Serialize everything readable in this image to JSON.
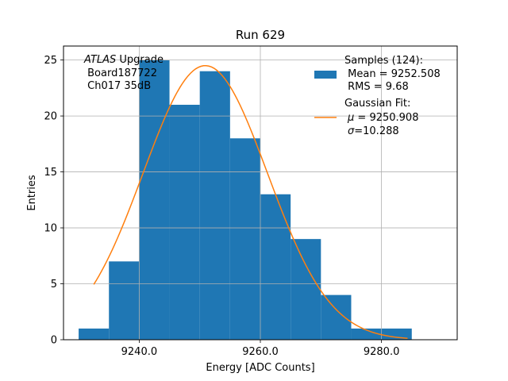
{
  "chart_data": {
    "type": "bar",
    "title": "Run 629",
    "xlabel": "Energy [ADC Counts]",
    "ylabel": "Entries",
    "xlim": [
      9227.5,
      9292.5
    ],
    "ylim": [
      0,
      26.25
    ],
    "grid": true,
    "legend_placement": "top-right",
    "x_ticks": [
      {
        "value": 9240,
        "label": "9240.0"
      },
      {
        "value": 9260,
        "label": "9260.0"
      },
      {
        "value": 9280,
        "label": "9280.0"
      }
    ],
    "y_ticks": [
      {
        "value": 0,
        "label": "0"
      },
      {
        "value": 5,
        "label": "5"
      },
      {
        "value": 10,
        "label": "10"
      },
      {
        "value": 15,
        "label": "15"
      },
      {
        "value": 20,
        "label": "20"
      },
      {
        "value": 25,
        "label": "25"
      }
    ],
    "histogram": {
      "bin_edges": [
        9230,
        9235,
        9240,
        9245,
        9250,
        9255,
        9260,
        9265,
        9270,
        9275,
        9280,
        9285
      ],
      "counts": [
        1,
        7,
        25,
        21,
        24,
        18,
        13,
        9,
        4,
        1,
        1
      ],
      "color": "#1f77b4"
    },
    "fit": {
      "type": "gaussian",
      "mu": 9250.908,
      "sigma": 10.288,
      "peak": 24.5,
      "x_range": [
        9232.5,
        9284.3
      ],
      "color": "#ff7f0e"
    },
    "annotation": {
      "italic_part": "ATLAS",
      "first_line_rest": " Upgrade",
      "lines": [
        " Board187722",
        " Ch017 35dB"
      ]
    },
    "legend": {
      "samples": {
        "lines": [
          "Samples (124):",
          " Mean = 9252.508",
          " RMS = 9.68"
        ]
      },
      "fit": {
        "line1": "Gaussian Fit:",
        "mu_symbol": "μ",
        "mu_text": " = 9250.908",
        "sigma_symbol": "σ",
        "sigma_text": "=10.288"
      }
    }
  }
}
